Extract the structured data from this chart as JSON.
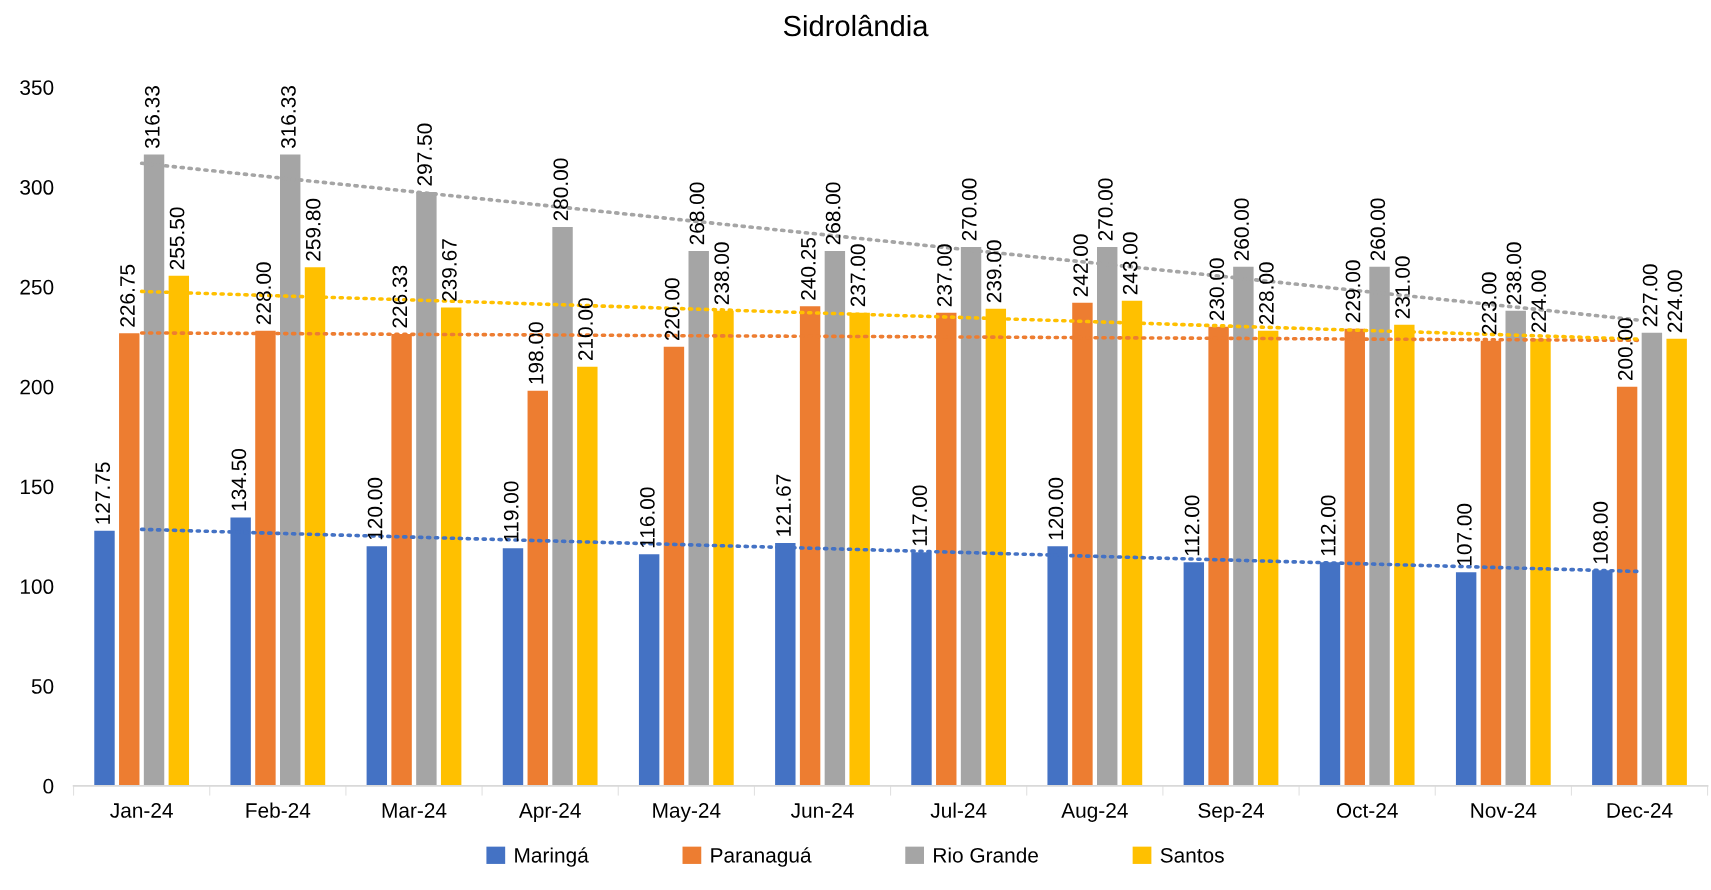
{
  "chart_data": {
    "type": "bar",
    "title": "Sidrolândia",
    "categories": [
      "Jan-24",
      "Feb-24",
      "Mar-24",
      "Apr-24",
      "May-24",
      "Jun-24",
      "Jul-24",
      "Aug-24",
      "Sep-24",
      "Oct-24",
      "Nov-24",
      "Dec-24"
    ],
    "series": [
      {
        "name": "Maringá",
        "color": "#4472c4",
        "values": [
          127.75,
          134.5,
          120,
          119,
          116,
          121.67,
          117,
          120,
          112,
          112,
          107,
          108
        ],
        "value_labels": [
          "127.75",
          "134.50",
          "120.00",
          "119.00",
          "116.00",
          "121.67",
          "117.00",
          "120.00",
          "112.00",
          "112.00",
          "107.00",
          "108.00"
        ]
      },
      {
        "name": "Paranaguá",
        "color": "#ed7d31",
        "values": [
          226.75,
          228,
          226.33,
          198,
          220,
          240.25,
          237,
          242,
          230,
          229,
          223,
          200
        ],
        "value_labels": [
          "226.75",
          "228.00",
          "226.33",
          "198.00",
          "220.00",
          "240.25",
          "237.00",
          "242.00",
          "230.00",
          "229.00",
          "223.00",
          "200.00"
        ]
      },
      {
        "name": "Rio Grande",
        "color": "#a5a5a5",
        "values": [
          316.33,
          316.33,
          297.5,
          280,
          268,
          268,
          270,
          270,
          260,
          260,
          238,
          227
        ],
        "value_labels": [
          "316.33",
          "316.33",
          "297.50",
          "280.00",
          "268.00",
          "268.00",
          "270.00",
          "270.00",
          "260.00",
          "260.00",
          "238.00",
          "227.00"
        ]
      },
      {
        "name": "Santos",
        "color": "#ffc000",
        "values": [
          255.5,
          259.8,
          239.67,
          210,
          238,
          237,
          239,
          243,
          228,
          231,
          224,
          224
        ],
        "value_labels": [
          "255.50",
          "259.80",
          "239.67",
          "210.00",
          "238.00",
          "237.00",
          "239.00",
          "243.00",
          "228.00",
          "231.00",
          "224.00",
          "224.00"
        ]
      },
      {
        "type": "line",
        "line_style": "dotted",
        "color": "#4472c4",
        "values": [
          128.5,
          126.5,
          124.6,
          122.7,
          120.8,
          118.9,
          117.0,
          115.0,
          113.1,
          111.2,
          109.3,
          107.4
        ]
      },
      {
        "type": "line",
        "line_style": "dotted",
        "color": "#ed7d31",
        "values": [
          226.9,
          226.6,
          226.2,
          225.9,
          225.5,
          225.2,
          224.9,
          224.5,
          224.2,
          223.8,
          223.5,
          223.2
        ]
      },
      {
        "type": "line",
        "line_style": "dotted",
        "color": "#a5a5a5",
        "values": [
          311.9,
          304.7,
          297.6,
          290.5,
          283.3,
          276.2,
          269.0,
          261.9,
          254.8,
          247.6,
          240.5,
          233.3
        ]
      },
      {
        "type": "line",
        "line_style": "dotted",
        "color": "#ffc000",
        "values": [
          247.7,
          245.5,
          243.4,
          241.2,
          239.0,
          236.8,
          234.7,
          232.5,
          230.3,
          228.1,
          226.0,
          223.8
        ]
      }
    ],
    "ylim": [
      0,
      350
    ],
    "yticks": [
      0,
      50,
      100,
      150,
      200,
      250,
      300,
      350
    ],
    "grid": false,
    "legend": "bottom"
  }
}
